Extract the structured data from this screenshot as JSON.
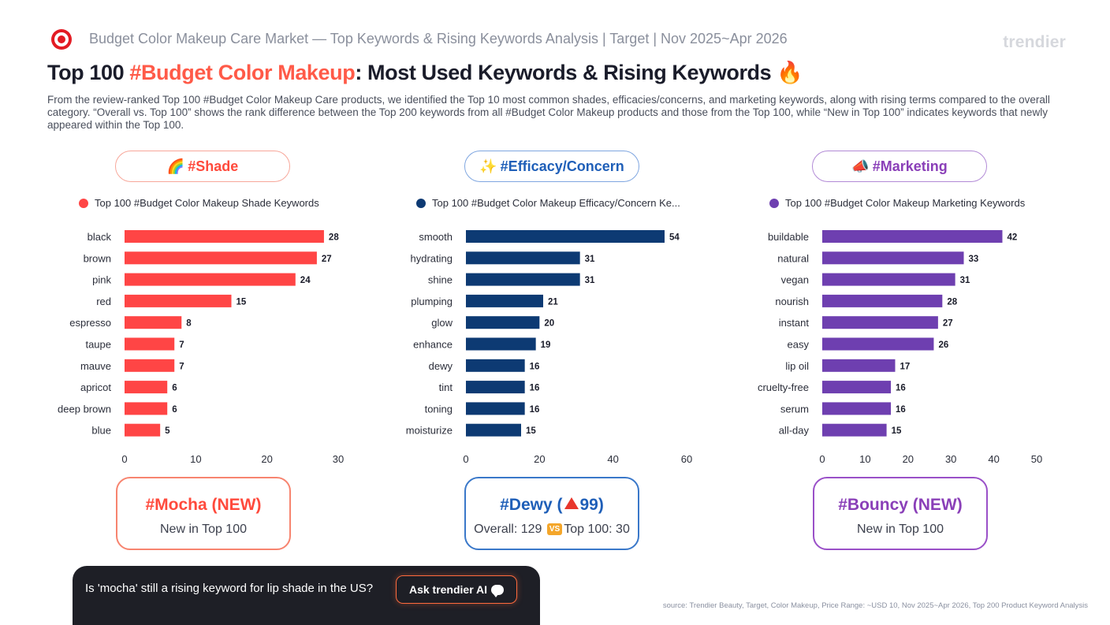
{
  "header": {
    "logo_icon": "target-logo",
    "text": "Budget Color Makeup Care Market — Top Keywords & Rising Keywords Analysis | Target | Nov 2025~Apr 2026",
    "brand": "trendier"
  },
  "title": {
    "prefix": "Top 100 ",
    "highlight": "#Budget Color Makeup",
    "suffix": ": Most Used Keywords & Rising Keywords",
    "emoji": "🔥"
  },
  "description": "From the review-ranked Top 100 #Budget Color Makeup Care products, we identified the Top 10 most common shades, efficacies/concerns, and marketing keywords, along with rising terms compared to the overall category. “Overall vs. Top 100” shows the rank difference between the Top 200 keywords from all #Budget Color Makeup products and those from the Top 100, while “New in Top 100” indicates keywords that newly appeared within the Top 100.",
  "sections": [
    {
      "pill_emoji": "🌈",
      "pill_label": "#Shade",
      "color": "#ff4545",
      "border_color": "#f7a79a",
      "text_color": "#ff4a3c",
      "legend": "Top 100 #Budget Color Makeup Shade Keywords",
      "card": {
        "title": "#Mocha (NEW)",
        "subtitle": "New in Top 100",
        "title_color": "#ff4a3c",
        "border_color": "#f7846f"
      }
    },
    {
      "pill_emoji": "✨",
      "pill_label": "#Efficacy/Concern",
      "color": "#0d3a73",
      "border_color": "#7fa6e0",
      "text_color": "#1f5fb8",
      "legend": "Top 100 #Budget Color Makeup Efficacy/Concern Ke...",
      "card": {
        "title_prefix": "#Dewy (",
        "title_value": "99",
        "title_suffix": ")",
        "overall": "Overall: 129",
        "vs_badge": "VS",
        "top100": "Top 100: 30",
        "title_color": "#1f5fb8",
        "border_color": "#3a78c9"
      }
    },
    {
      "pill_emoji": "📣",
      "pill_label": "#Marketing",
      "color": "#6e3fb0",
      "border_color": "#b28ad6",
      "text_color": "#8a3fb8",
      "legend": "Top 100 #Budget Color Makeup Marketing Keywords",
      "card": {
        "title": "#Bouncy (NEW)",
        "subtitle": "New in Top 100",
        "title_color": "#8a3fb8",
        "border_color": "#9a50c8"
      }
    }
  ],
  "chart_data": [
    {
      "type": "bar",
      "orientation": "horizontal",
      "series_name": "Top 100 #Budget Color Makeup Shade Keywords",
      "categories": [
        "black",
        "brown",
        "pink",
        "red",
        "espresso",
        "taupe",
        "mauve",
        "apricot",
        "deep brown",
        "blue"
      ],
      "values": [
        28,
        27,
        24,
        15,
        8,
        7,
        7,
        6,
        6,
        5
      ],
      "xlim": [
        0,
        30
      ],
      "xticks": [
        0,
        10,
        20,
        30
      ],
      "grid": false,
      "color": "#ff4545"
    },
    {
      "type": "bar",
      "orientation": "horizontal",
      "series_name": "Top 100 #Budget Color Makeup Efficacy/Concern Ke...",
      "categories": [
        "smooth",
        "hydrating",
        "shine",
        "plumping",
        "glow",
        "enhance",
        "dewy",
        "tint",
        "toning",
        "moisturize"
      ],
      "values": [
        54,
        31,
        31,
        21,
        20,
        19,
        16,
        16,
        16,
        15
      ],
      "xlim": [
        0,
        60
      ],
      "xticks": [
        0,
        20,
        40,
        60
      ],
      "grid": false,
      "color": "#0d3a73"
    },
    {
      "type": "bar",
      "orientation": "horizontal",
      "series_name": "Top 100 #Budget Color Makeup Marketing Keywords",
      "categories": [
        "buildable",
        "natural",
        "vegan",
        "nourish",
        "instant",
        "easy",
        "lip oil",
        "cruelty-free",
        "serum",
        "all-day"
      ],
      "values": [
        42,
        33,
        31,
        28,
        27,
        26,
        17,
        16,
        16,
        15
      ],
      "xlim": [
        0,
        50
      ],
      "xticks": [
        0,
        10,
        20,
        30,
        40,
        50
      ],
      "grid": false,
      "color": "#6e3fb0"
    }
  ],
  "ask": {
    "question": "Is 'mocha' still a rising keyword for lip shade in the US?",
    "button_label": "Ask trendier AI",
    "button_icon": "chat-bubble-icon"
  },
  "source": "source: Trendier Beauty, Target, Color Makeup, Price Range: ~USD 10, Nov 2025~Apr 2026, Top 200 Product Keyword Analysis"
}
